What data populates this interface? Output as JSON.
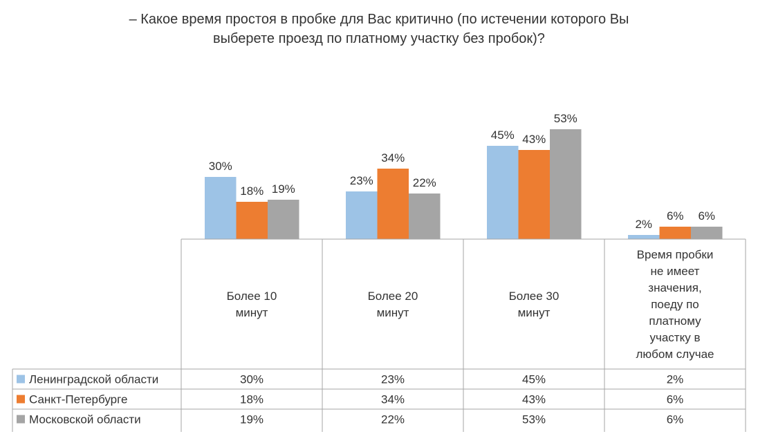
{
  "chart_data": {
    "type": "bar",
    "title": "– Какое время простоя в пробке для Вас критично (по истечении которого Вы\nвыберете проезд по платному участку без пробок)?",
    "categories": [
      "Более 10\nминут",
      "Более 20\nминут",
      "Более 30\nминут",
      "Время пробки\nне имеет\nзначения,\nпоеду по\nплатному\nучастку в\nлюбом случае"
    ],
    "series": [
      {
        "name": "Ленинградской области",
        "values": [
          30,
          23,
          45,
          2
        ],
        "labels": [
          "30%",
          "23%",
          "45%",
          "2%"
        ],
        "color": "#9DC3E6"
      },
      {
        "name": "Санкт-Петербурге",
        "values": [
          18,
          34,
          43,
          6
        ],
        "labels": [
          "18%",
          "34%",
          "43%",
          "6%"
        ],
        "color": "#ED7D31"
      },
      {
        "name": "Московской области",
        "values": [
          19,
          22,
          53,
          6
        ],
        "labels": [
          "19%",
          "22%",
          "53%",
          "6%"
        ],
        "color": "#A5A5A5"
      }
    ],
    "ylim": [
      0,
      100
    ],
    "grid": false,
    "legend": "data-table"
  }
}
